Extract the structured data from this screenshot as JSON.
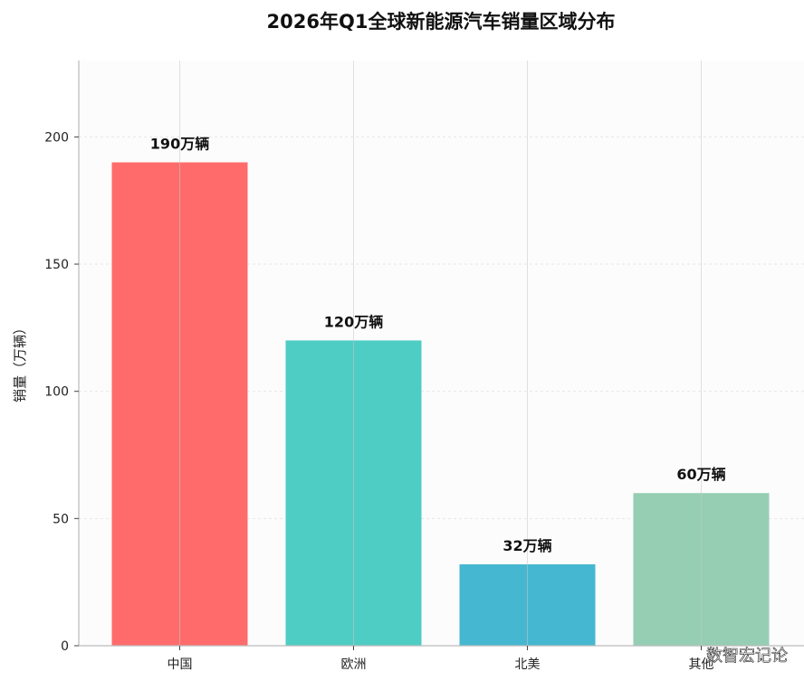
{
  "chart_data": {
    "type": "bar",
    "title": "2026年Q1全球新能源汽车销量区域分布",
    "xlabel": "",
    "ylabel": "销量（万辆）",
    "categories": [
      "中国",
      "欧洲",
      "北美",
      "其他"
    ],
    "values": [
      190,
      120,
      32,
      60
    ],
    "data_labels": [
      "190万辆",
      "120万辆",
      "32万辆",
      "60万辆"
    ],
    "colors": [
      "#ff6b6b",
      "#4ecdc4",
      "#45b7d1",
      "#96ceb4"
    ],
    "ylim": [
      0,
      230
    ],
    "yticks": [
      0,
      50,
      100,
      150,
      200
    ],
    "grid": true,
    "legend": "none"
  },
  "watermark": "数智宏记论"
}
